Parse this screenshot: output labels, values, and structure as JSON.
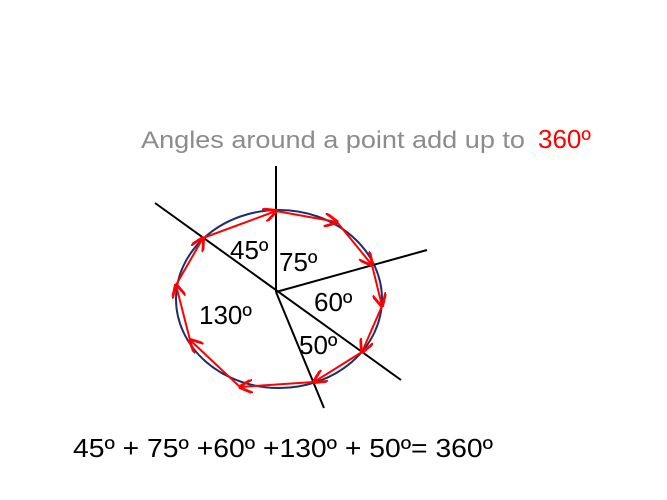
{
  "title": {
    "text": "Angles around a point add up to",
    "highlight": "360º"
  },
  "angles": [
    {
      "label": "45º"
    },
    {
      "label": "75º"
    },
    {
      "label": "60º"
    },
    {
      "label": "130º"
    },
    {
      "label": "50º"
    }
  ],
  "equation": "45º + 75º +60º +130º + 50º= 360º",
  "colors": {
    "title": "#8c8c8c",
    "highlight": "#ff0000",
    "circle": "#1f2f6b",
    "arrows": "#ff0000",
    "lines": "#000000"
  }
}
